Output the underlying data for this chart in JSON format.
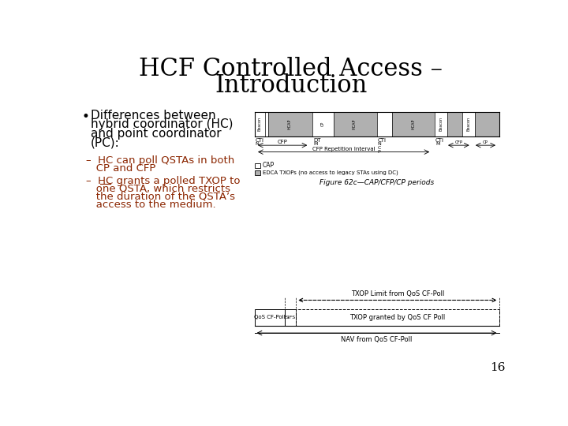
{
  "title_line1": "HCF Controlled Access –",
  "title_line2": "Introduction",
  "title_fontsize": 22,
  "title_color": "#000000",
  "bullet_color": "#000000",
  "bullet_text_lines": [
    "Differences between",
    "hybrid coordinator (HC)",
    "and point coordinator",
    "(PC):"
  ],
  "bullet_fontsize": 11,
  "sub_bullet_color": "#8B2500",
  "sub_bullet1": [
    "–  HC can poll QSTAs in both",
    "   CP and CFP"
  ],
  "sub_bullet2": [
    "–  HC grants a polled TXOP to",
    "   one QSTA, which restricts",
    "   the duration of the QSTA’s",
    "   access to the medium."
  ],
  "sub_bullet_fontsize": 9.5,
  "page_number": "16",
  "background_color": "#ffffff",
  "figure_label1": "Figure 62c—CAP/CFP/CP periods",
  "gray_color": "#b0b0b0",
  "dark_gray": "#808080"
}
